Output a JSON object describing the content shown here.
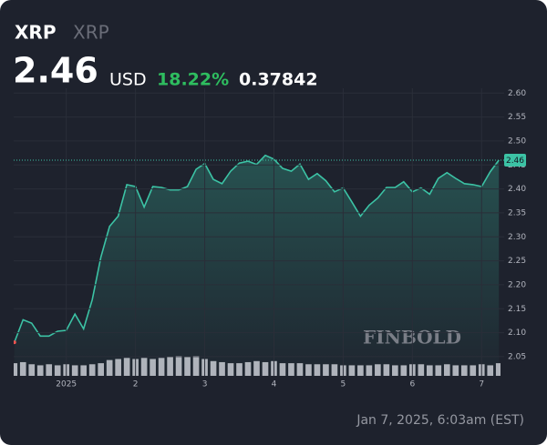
{
  "chart_data": {
    "type": "line",
    "symbol": "XRP",
    "name": "XRP",
    "price": 2.46,
    "currency": "USD",
    "change_percent": "18.22%",
    "change": 0.37842,
    "watermark": "FINBOLD",
    "timestamp": "Jan 7, 2025, 6:03am (EST)",
    "grid": true,
    "x": [
      0.25,
      0.375,
      0.5,
      0.625,
      0.75,
      0.875,
      1.0,
      1.125,
      1.25,
      1.375,
      1.5,
      1.625,
      1.75,
      1.875,
      2.0,
      2.125,
      2.25,
      2.375,
      2.5,
      2.625,
      2.75,
      2.875,
      3.0,
      3.125,
      3.25,
      3.375,
      3.5,
      3.625,
      3.75,
      3.875,
      4.0,
      4.125,
      4.25,
      4.375,
      4.5,
      4.625,
      4.75,
      4.875,
      5.0,
      5.125,
      5.25,
      5.375,
      5.5,
      5.625,
      5.75,
      5.875,
      6.0,
      6.125,
      6.25,
      6.375,
      6.5,
      6.625,
      6.75,
      6.875,
      7.0,
      7.125,
      7.25
    ],
    "series": [
      {
        "name": "XRP",
        "color": "#3cc3a5",
        "values": [
          2.08,
          2.127,
          2.12,
          2.093,
          2.093,
          2.103,
          2.105,
          2.139,
          2.108,
          2.169,
          2.258,
          2.322,
          2.343,
          2.409,
          2.405,
          2.362,
          2.405,
          2.403,
          2.398,
          2.398,
          2.405,
          2.441,
          2.453,
          2.42,
          2.411,
          2.437,
          2.454,
          2.458,
          2.451,
          2.47,
          2.462,
          2.443,
          2.437,
          2.452,
          2.42,
          2.432,
          2.417,
          2.394,
          2.402,
          2.373,
          2.343,
          2.366,
          2.381,
          2.403,
          2.403,
          2.415,
          2.394,
          2.402,
          2.389,
          2.422,
          2.434,
          2.422,
          2.411,
          2.409,
          2.405,
          2.436,
          2.46
        ]
      },
      {
        "name": "Volume",
        "color": "#c9ccd3",
        "axis": "volume",
        "values": [
          60,
          65,
          55,
          50,
          55,
          50,
          55,
          50,
          50,
          55,
          60,
          75,
          80,
          85,
          80,
          85,
          80,
          85,
          90,
          95,
          90,
          95,
          80,
          70,
          65,
          60,
          60,
          65,
          70,
          65,
          70,
          60,
          60,
          60,
          55,
          55,
          55,
          55,
          50,
          50,
          50,
          50,
          55,
          55,
          50,
          50,
          55,
          55,
          50,
          50,
          55,
          50,
          50,
          50,
          55,
          50,
          60
        ]
      }
    ],
    "xlim": [
      0.24,
      7.26
    ],
    "xticks": [
      {
        "value": 1,
        "label": "2025"
      },
      2,
      3,
      4,
      5,
      6,
      7
    ],
    "ylim": [
      2.01,
      2.61
    ],
    "yticks": [
      2.05,
      {
        "value": 2.1,
        "label": "2.10"
      },
      2.15,
      {
        "value": 2.2,
        "label": "2.20"
      },
      2.25,
      {
        "value": 2.3,
        "label": "2.30"
      },
      2.35,
      {
        "value": 2.4,
        "label": "2.40"
      },
      2.45,
      {
        "value": 2.5,
        "label": "2.50"
      },
      2.55,
      {
        "value": 2.6,
        "label": "2.60"
      }
    ]
  }
}
